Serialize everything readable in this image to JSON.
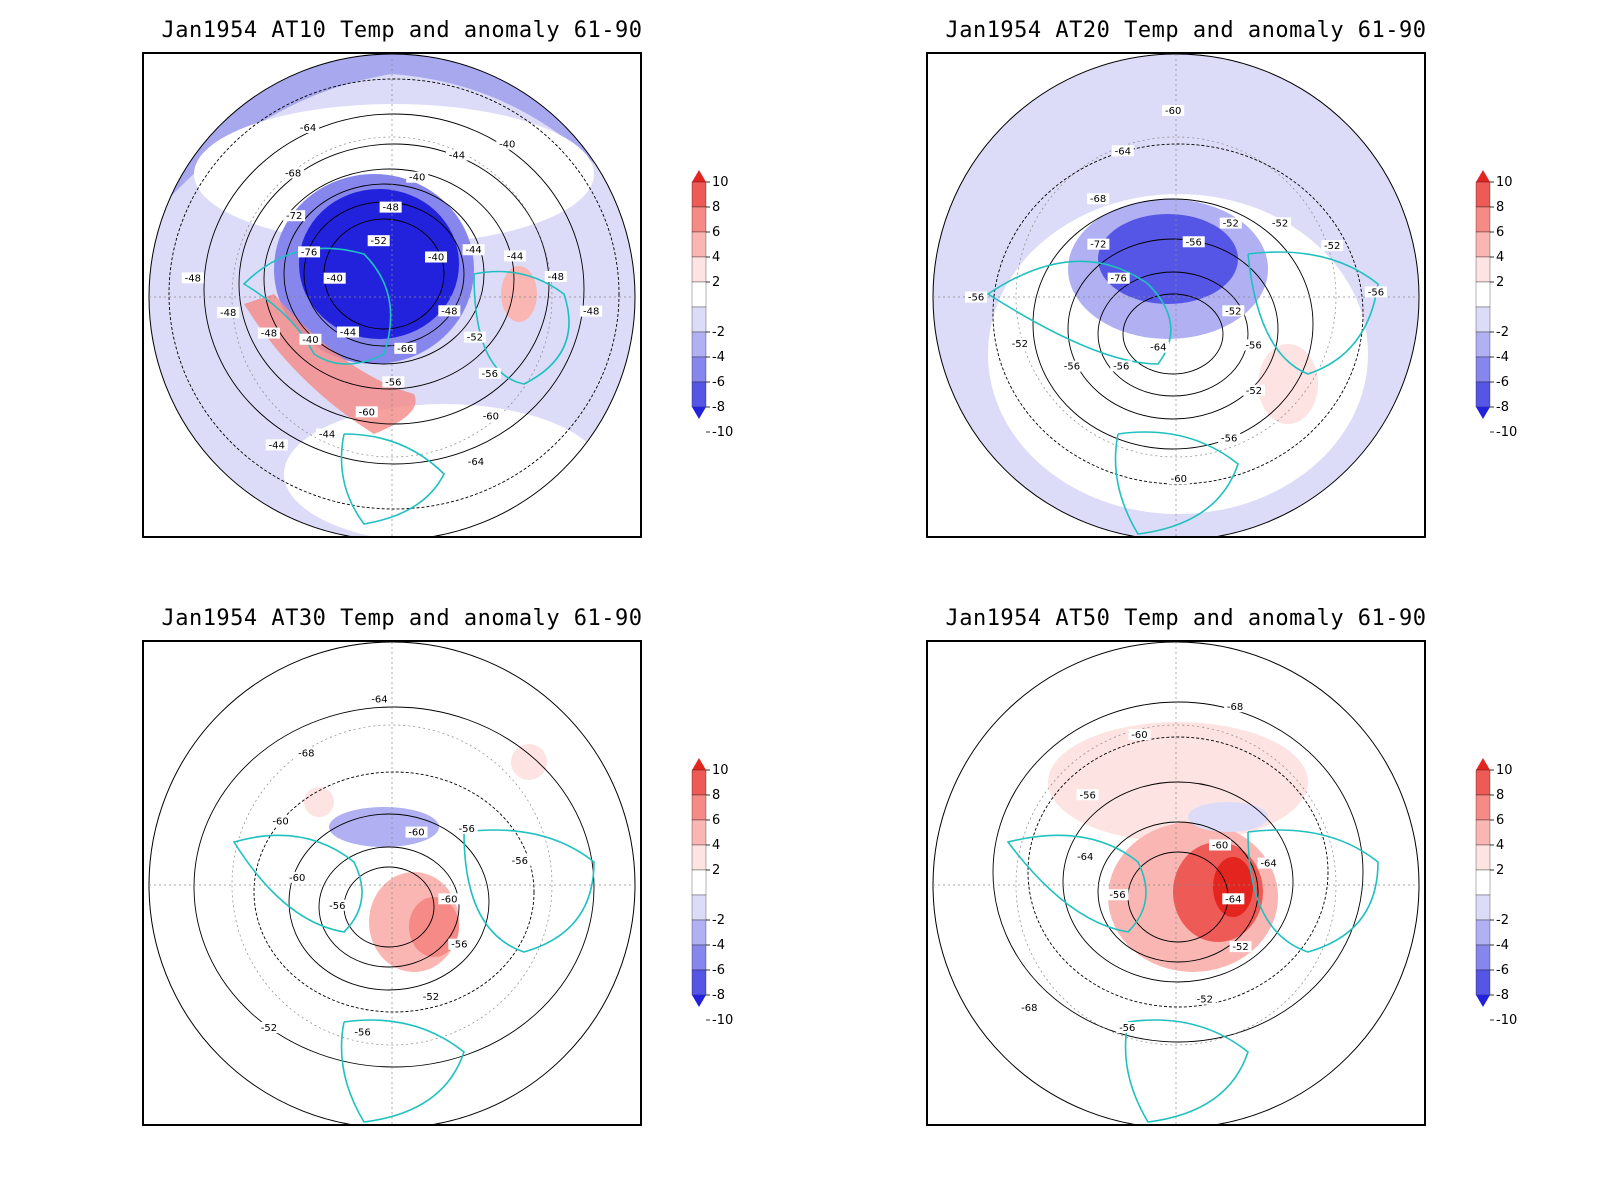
{
  "figure": {
    "panels": [
      {
        "title": "Jan1954 AT10 Temp and anomaly 61-90",
        "level": "AT10",
        "contour_labels": [
          "-48",
          "-52",
          "-56",
          "-60",
          "-64",
          "-66",
          "-56",
          "-60",
          "-44",
          "-44",
          "-44",
          "-40",
          "-48",
          "-48",
          "-48",
          "-40",
          "-76",
          "-72",
          "-68",
          "-64",
          "-52",
          "-48",
          "-40",
          "-44",
          "-40",
          "-40",
          "-44",
          "-44",
          "-48",
          "-48"
        ],
        "anomaly_features": [
          {
            "kind": "negative",
            "max_magnitude": 10
          },
          {
            "kind": "positive",
            "max_magnitude": 6
          }
        ]
      },
      {
        "title": "Jan1954 AT20 Temp and anomaly 61-90",
        "level": "AT20",
        "contour_labels": [
          "-52",
          "-56",
          "-52",
          "-56",
          "-60",
          "-64",
          "-56",
          "-56",
          "-52",
          "-56",
          "-76",
          "-72",
          "-68",
          "-64",
          "-60",
          "-56",
          "-52",
          "-52",
          "-52",
          "-56"
        ],
        "anomaly_features": [
          {
            "kind": "negative",
            "max_magnitude": 10
          },
          {
            "kind": "positive",
            "max_magnitude": 4
          }
        ]
      },
      {
        "title": "Jan1954 AT30 Temp and anomaly 61-90",
        "level": "AT30",
        "contour_labels": [
          "-60",
          "-56",
          "-52",
          "-56",
          "-52",
          "-56",
          "-60",
          "-60",
          "-68",
          "-64",
          "-60",
          "-56",
          "-56"
        ],
        "anomaly_features": [
          {
            "kind": "positive",
            "max_magnitude": 4
          },
          {
            "kind": "negative",
            "max_magnitude": 4
          }
        ]
      },
      {
        "title": "Jan1954 AT50 Temp and anomaly 61-90",
        "level": "AT50",
        "contour_labels": [
          "-64",
          "-52",
          "-52",
          "-56",
          "-68",
          "-56",
          "-64",
          "-56",
          "-60",
          "-68",
          "-60",
          "-64"
        ],
        "anomaly_features": [
          {
            "kind": "positive",
            "max_magnitude": 8
          },
          {
            "kind": "negative",
            "max_magnitude": 4
          }
        ]
      }
    ],
    "colorbar": {
      "ticks": [
        "10",
        "8",
        "6",
        "4",
        "2",
        "-2",
        "-4",
        "-6",
        "-8",
        "-10"
      ],
      "colors": [
        "#e3241f",
        "#ee5a56",
        "#f58a86",
        "#f9b6b3",
        "#fde3e1",
        "#ffffff",
        "#dcdcf8",
        "#b0b0f2",
        "#8686ec",
        "#5656e6",
        "#2222dc"
      ]
    },
    "map_colors": {
      "coastline": "#20c0c0",
      "contour": "#000000",
      "graticule": "#888888"
    }
  }
}
